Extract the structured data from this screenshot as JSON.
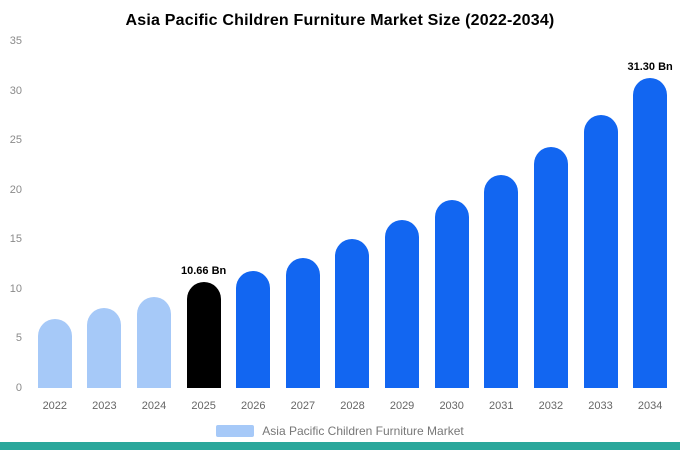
{
  "title": "Asia Pacific Children Furniture Market Size (2022-2034)",
  "legend": {
    "label": "Asia Pacific Children Furniture Market",
    "swatch_color": "#a6c9f8"
  },
  "footer_bar_color": "#2aa79b",
  "colors": {
    "light_blue": "#a6c9f8",
    "bright_blue": "#1266f1",
    "highlight_black": "#000000"
  },
  "chart_data": {
    "type": "bar",
    "title": "Asia Pacific Children Furniture Market Size (2022-2034)",
    "categories": [
      "2022",
      "2023",
      "2024",
      "2025",
      "2026",
      "2027",
      "2028",
      "2029",
      "2030",
      "2031",
      "2032",
      "2033",
      "2034"
    ],
    "values": [
      7.0,
      8.1,
      9.2,
      10.66,
      11.8,
      13.1,
      15.0,
      16.9,
      19.0,
      21.5,
      24.3,
      27.5,
      31.3
    ],
    "unit": "Bn",
    "ylim": [
      0,
      35
    ],
    "yticks": [
      0,
      5,
      10,
      15,
      20,
      25,
      30,
      35
    ],
    "grid": false,
    "legend_position": "bottom",
    "bar_colors": [
      "#a6c9f8",
      "#a6c9f8",
      "#a6c9f8",
      "#000000",
      "#1266f1",
      "#1266f1",
      "#1266f1",
      "#1266f1",
      "#1266f1",
      "#1266f1",
      "#1266f1",
      "#1266f1",
      "#1266f1"
    ],
    "annotations": [
      {
        "category": "2025",
        "text": "10.66 Bn"
      },
      {
        "category": "2034",
        "text": "31.30 Bn"
      }
    ]
  }
}
